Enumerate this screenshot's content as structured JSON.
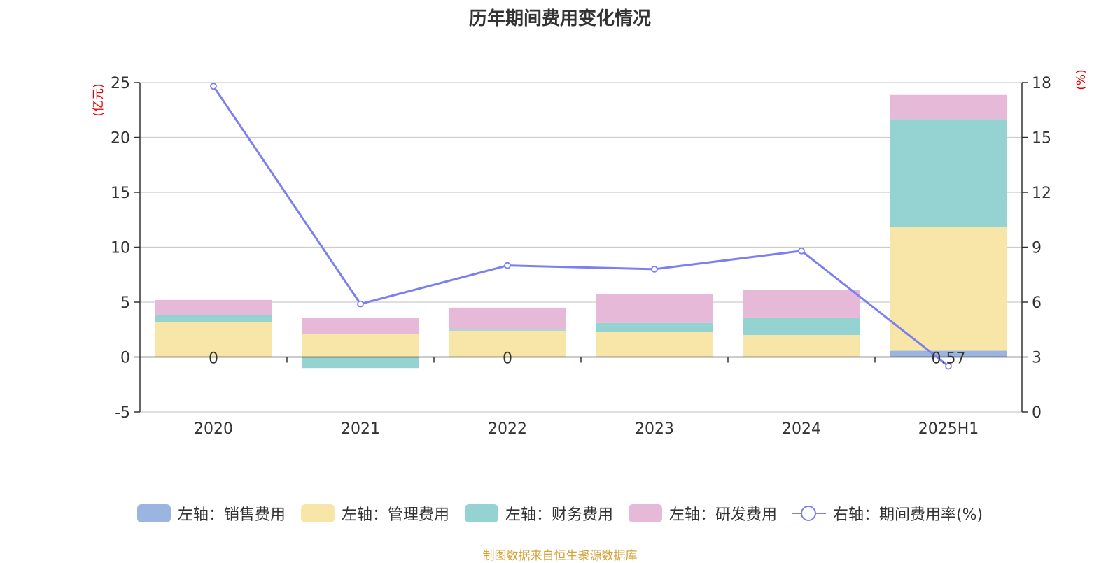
{
  "chart_data": {
    "type": "bar",
    "title": "历年期间费用变化情况",
    "categories": [
      "2020",
      "2021",
      "2022",
      "2023",
      "2024",
      "2025H1"
    ],
    "stacked": true,
    "left_axis": {
      "unit": "(亿元)",
      "ylim": [
        -5,
        25
      ],
      "ticks": [
        "-5",
        "0",
        "5",
        "10",
        "15",
        "20",
        "25"
      ]
    },
    "right_axis": {
      "unit": "(%)",
      "ylim": [
        0,
        18
      ],
      "ticks": [
        "0",
        "3",
        "6",
        "9",
        "12",
        "15",
        "18"
      ]
    },
    "series": [
      {
        "name": "左轴：销售费用",
        "axis": "left",
        "type": "bar",
        "color": "#9bb5e1",
        "values": [
          0,
          0,
          0,
          0,
          0,
          0.57
        ]
      },
      {
        "name": "左轴：管理费用",
        "axis": "left",
        "type": "bar",
        "color": "#f8e6a8",
        "values": [
          3.2,
          2.1,
          2.4,
          2.3,
          2.0,
          11.3
        ]
      },
      {
        "name": "左轴：财务费用",
        "axis": "left",
        "type": "bar",
        "color": "#95d3d3",
        "values": [
          0.6,
          -1.0,
          0.1,
          0.8,
          1.6,
          9.8
        ]
      },
      {
        "name": "左轴：研发费用",
        "axis": "left",
        "type": "bar",
        "color": "#e6b9d8",
        "values": [
          1.4,
          1.5,
          2.0,
          2.6,
          2.5,
          2.2
        ]
      },
      {
        "name": "右轴：期间费用率(%)",
        "axis": "right",
        "type": "line",
        "color": "#7b7ff0",
        "values": [
          17.8,
          5.9,
          8.0,
          7.8,
          8.8,
          2.5
        ]
      }
    ],
    "data_labels": [
      "0",
      "",
      "0",
      "",
      "",
      "0.57"
    ],
    "grid": true,
    "legend_position": "bottom"
  },
  "source_note": "制图数据来自恒生聚源数据库"
}
